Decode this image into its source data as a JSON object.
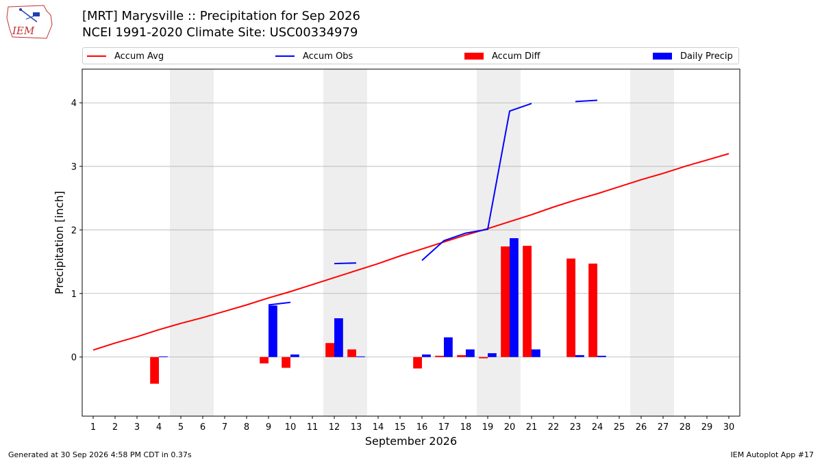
{
  "header": {
    "title_line1": "[MRT] Marysville :: Precipitation for Sep 2026",
    "title_line2": "NCEI 1991-2020 Climate Site: USC00334979",
    "logo_text": "IEM"
  },
  "footer": {
    "left": "Generated at 30 Sep 2026 4:58 PM CDT in 0.37s",
    "right": "IEM Autoplot App #17"
  },
  "colors": {
    "avg": "#ff0000",
    "obs": "#0000ff",
    "diff": "#ff0000",
    "daily": "#0000ff",
    "weekend": "#eeeeee",
    "grid": "#b0b0b0"
  },
  "chart_data": {
    "type": "bar",
    "xlabel": "September 2026",
    "ylabel": "Precipitation [inch]",
    "xlim": [
      0.5,
      30.5
    ],
    "ylim": [
      -0.93,
      4.53
    ],
    "yticks": [
      0,
      1,
      2,
      3,
      4
    ],
    "x": [
      1,
      2,
      3,
      4,
      5,
      6,
      7,
      8,
      9,
      10,
      11,
      12,
      13,
      14,
      15,
      16,
      17,
      18,
      19,
      20,
      21,
      22,
      23,
      24,
      25,
      26,
      27,
      28,
      29,
      30
    ],
    "weekend_days": [
      5,
      6,
      12,
      13,
      19,
      20,
      26,
      27
    ],
    "legend": [
      {
        "label": "Accum Avg",
        "kind": "line",
        "color": "#ff0000"
      },
      {
        "label": "Accum Obs",
        "kind": "line",
        "color": "#0000ff"
      },
      {
        "label": "Accum Diff",
        "kind": "bar",
        "color": "#ff0000"
      },
      {
        "label": "Daily Precip",
        "kind": "bar",
        "color": "#0000ff"
      }
    ],
    "series": [
      {
        "name": "Accum Avg",
        "type": "line",
        "values": [
          0.11,
          0.22,
          0.32,
          0.43,
          0.53,
          0.62,
          0.72,
          0.82,
          0.93,
          1.03,
          1.14,
          1.25,
          1.36,
          1.47,
          1.59,
          1.7,
          1.81,
          1.92,
          2.02,
          2.13,
          2.24,
          2.36,
          2.47,
          2.57,
          2.68,
          2.79,
          2.89,
          3.0,
          3.1,
          3.2
        ]
      },
      {
        "name": "Accum Obs",
        "type": "line",
        "values": [
          null,
          null,
          null,
          null,
          null,
          null,
          null,
          null,
          0.82,
          0.86,
          null,
          1.47,
          1.48,
          null,
          null,
          1.52,
          1.83,
          1.95,
          2.01,
          3.87,
          3.99,
          null,
          4.02,
          4.04,
          null,
          null,
          null,
          null,
          null,
          null
        ]
      },
      {
        "name": "Accum Diff",
        "type": "bar",
        "values": [
          null,
          null,
          null,
          -0.42,
          null,
          null,
          null,
          null,
          -0.1,
          -0.17,
          null,
          0.22,
          0.12,
          null,
          null,
          -0.18,
          0.02,
          0.03,
          -0.02,
          1.74,
          1.75,
          null,
          1.55,
          1.47,
          null,
          null,
          null,
          null,
          null,
          null
        ]
      },
      {
        "name": "Daily Precip",
        "type": "bar",
        "values": [
          null,
          null,
          null,
          0.01,
          null,
          null,
          null,
          null,
          0.81,
          0.04,
          null,
          0.61,
          0.01,
          null,
          null,
          0.04,
          0.31,
          0.12,
          0.06,
          1.87,
          0.12,
          null,
          0.03,
          0.02,
          null,
          null,
          null,
          null,
          null,
          null
        ]
      }
    ]
  }
}
